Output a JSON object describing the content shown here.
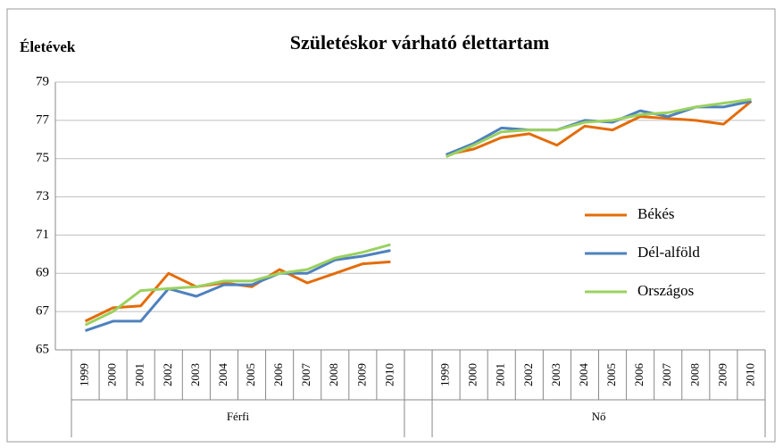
{
  "chart_data": {
    "type": "line",
    "title": "Születéskor várható élettartam",
    "y_label": "Életévek",
    "categories": [
      "1999",
      "2000",
      "2001",
      "2002",
      "2003",
      "2004",
      "2005",
      "2006",
      "2007",
      "2008",
      "2009",
      "2010",
      null,
      "1999",
      "2000",
      "2001",
      "2002",
      "2003",
      "2004",
      "2005",
      "2006",
      "2007",
      "2008",
      "2009",
      "2010"
    ],
    "groups": [
      "Férfi",
      "Nő"
    ],
    "series": [
      {
        "name": "Békés",
        "color": "#e36c09",
        "values": [
          66.5,
          67.2,
          67.3,
          69.0,
          68.3,
          68.5,
          68.3,
          69.2,
          68.5,
          69.0,
          69.5,
          69.6,
          null,
          75.2,
          75.5,
          76.1,
          76.3,
          75.7,
          76.7,
          76.5,
          77.2,
          77.1,
          77.0,
          76.8,
          78.0
        ]
      },
      {
        "name": "Dél-alföld",
        "color": "#4f81bd",
        "values": [
          66.0,
          66.5,
          66.5,
          68.2,
          67.8,
          68.4,
          68.4,
          69.0,
          69.0,
          69.7,
          69.9,
          70.2,
          null,
          75.2,
          75.8,
          76.6,
          76.5,
          76.5,
          77.0,
          76.9,
          77.5,
          77.2,
          77.7,
          77.7,
          78.0
        ]
      },
      {
        "name": "Országos",
        "color": "#9bd160",
        "values": [
          66.3,
          67.0,
          68.1,
          68.2,
          68.3,
          68.6,
          68.6,
          69.0,
          69.2,
          69.8,
          70.1,
          70.5,
          null,
          75.1,
          75.7,
          76.4,
          76.5,
          76.5,
          76.9,
          77.0,
          77.3,
          77.4,
          77.7,
          77.9,
          78.1
        ]
      }
    ],
    "ylim": [
      65,
      79
    ],
    "yticks": [
      65,
      67,
      69,
      71,
      73,
      75,
      77,
      79
    ],
    "grid": true,
    "legend": "right"
  }
}
